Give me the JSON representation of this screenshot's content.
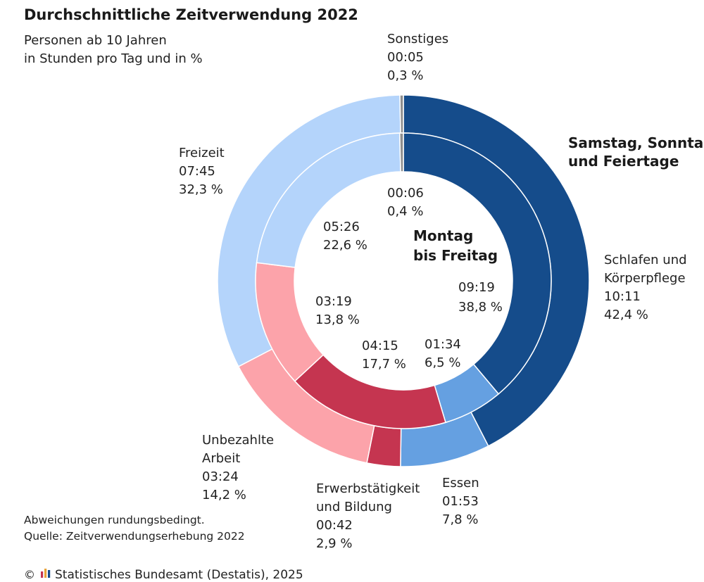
{
  "chart_data": {
    "type": "pie",
    "title": "Durchschnittliche Zeitverwendung 2022",
    "subtitle": [
      "Personen ab 10 Jahren",
      "in Stunden pro Tag und in %"
    ],
    "rings": {
      "inner_title": [
        "Montag",
        "bis Freitag"
      ],
      "outer_title": [
        "Samstag, Sonntag",
        "und Feiertage"
      ]
    },
    "categories": [
      {
        "key": "schlafen",
        "name": [
          "Schlafen und",
          "Körperpflege"
        ],
        "color": "#154c8b"
      },
      {
        "key": "essen",
        "name": [
          "Essen"
        ],
        "color": "#65a0e1"
      },
      {
        "key": "erwerb",
        "name": [
          "Erwerbstätigkeit",
          "und Bildung"
        ],
        "color": "#c53550"
      },
      {
        "key": "unbezahlt",
        "name": [
          "Unbezahlte",
          "Arbeit"
        ],
        "color": "#fca3aa"
      },
      {
        "key": "freizeit",
        "name": [
          "Freizeit"
        ],
        "color": "#b4d4fb"
      },
      {
        "key": "sonstiges",
        "name": [
          "Sonstiges"
        ],
        "color": "#8e8e8e"
      }
    ],
    "series": [
      {
        "ring": "inner",
        "percent": [
          38.8,
          6.5,
          17.7,
          13.8,
          22.6,
          0.4
        ],
        "time": [
          "09:19",
          "01:34",
          "04:15",
          "03:19",
          "05:26",
          "00:06"
        ],
        "percent_label": [
          "38,8 %",
          "6,5 %",
          "17,7 %",
          "13,8 %",
          "22,6 %",
          "0,4 %"
        ]
      },
      {
        "ring": "outer",
        "percent": [
          42.4,
          7.8,
          2.9,
          14.2,
          32.3,
          0.3
        ],
        "time": [
          "10:11",
          "01:53",
          "00:42",
          "03:24",
          "07:45",
          "00:05"
        ],
        "percent_label": [
          "42,4 %",
          "7,8 %",
          "2,9 %",
          "14,2 %",
          "32,3 %",
          "0,3 %"
        ]
      }
    ],
    "notes": [
      "Abweichungen rundungsbedingt.",
      "Quelle: Zeitverwendungserhebung 2022"
    ],
    "copyright_symbol": "©",
    "copyright": "Statistisches Bundesamt (Destatis), 2025",
    "logo_colors": [
      "#c53550",
      "#e8a33a",
      "#154c8b"
    ]
  }
}
